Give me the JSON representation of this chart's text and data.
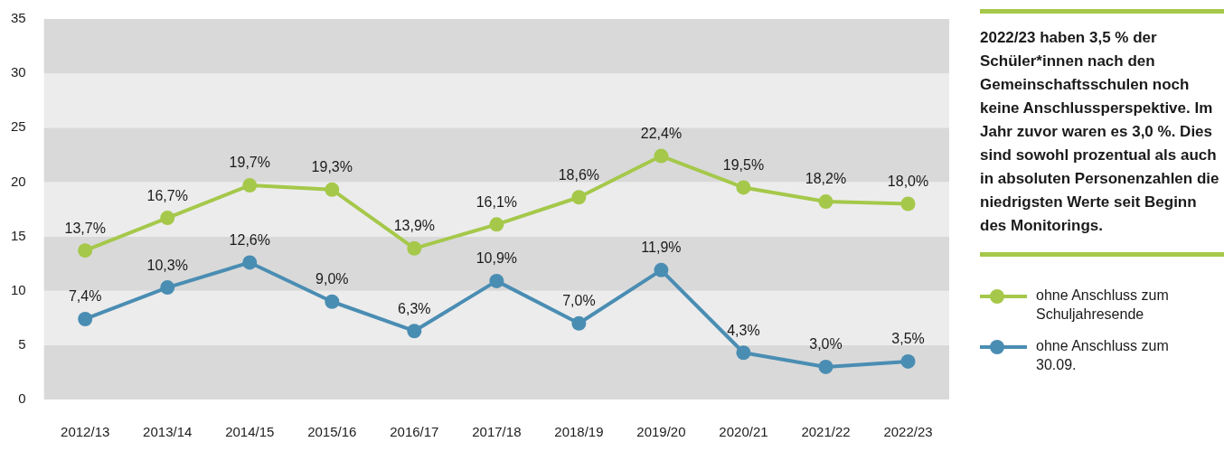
{
  "chart_data": {
    "type": "line",
    "categories": [
      "2012/13",
      "2013/14",
      "2014/15",
      "2015/16",
      "2016/17",
      "2017/18",
      "2018/19",
      "2019/20",
      "2020/21",
      "2021/22",
      "2022/23"
    ],
    "series": [
      {
        "name": "ohne Anschluss zum Schuljahresende",
        "color": "#a5c84a",
        "values": [
          13.7,
          16.7,
          19.7,
          19.3,
          13.9,
          16.1,
          18.6,
          22.4,
          19.5,
          18.2,
          18.0
        ],
        "value_labels": [
          "13,7%",
          "16,7%",
          "19,7%",
          "19,3%",
          "13,9%",
          "16,1%",
          "18,6%",
          "22,4%",
          "19,5%",
          "18,2%",
          "18,0%"
        ]
      },
      {
        "name": "ohne Anschluss zum 30.09.",
        "color": "#4a8db3",
        "values": [
          7.4,
          10.3,
          12.6,
          9.0,
          6.3,
          10.9,
          7.0,
          11.9,
          4.3,
          3.0,
          3.5
        ],
        "value_labels": [
          "7,4%",
          "10,3%",
          "12,6%",
          "9,0%",
          "6,3%",
          "10,9%",
          "7,0%",
          "11,9%",
          "4,3%",
          "3,0%",
          "3,5%"
        ]
      }
    ],
    "ylim": [
      0,
      35
    ],
    "yticks": [
      0,
      5,
      10,
      15,
      20,
      25,
      30,
      35
    ],
    "bands": [
      {
        "axis": "y",
        "from": 0,
        "to": 5,
        "color": "#d9d9d9"
      },
      {
        "axis": "y",
        "from": 5,
        "to": 10,
        "color": "#ececec"
      },
      {
        "axis": "y",
        "from": 10,
        "to": 15,
        "color": "#d9d9d9"
      },
      {
        "axis": "y",
        "from": 15,
        "to": 20,
        "color": "#ececec"
      },
      {
        "axis": "y",
        "from": 20,
        "to": 25,
        "color": "#d9d9d9"
      },
      {
        "axis": "y",
        "from": 25,
        "to": 30,
        "color": "#ececec"
      },
      {
        "axis": "y",
        "from": 30,
        "to": 35,
        "color": "#d9d9d9"
      }
    ],
    "legend": "right",
    "marker": "circle",
    "line_style": "solid",
    "annotations": [
      "2022/23 haben 3,5 % der Schüler*innen nach den Gemeinschaftsschulen noch keine Anschlussperspektive. Im Jahr zuvor waren es 3,0 %. Dies sind sowohl prozentual als auch in absoluten Personenzahlen die niedrigsten Werte seit Beginn des Monitorings."
    ]
  }
}
